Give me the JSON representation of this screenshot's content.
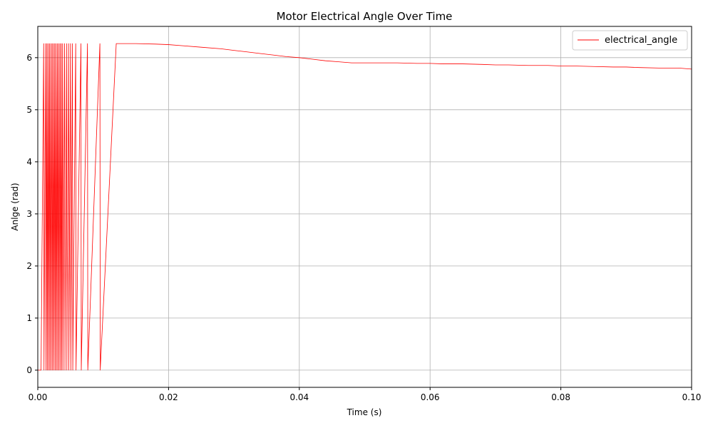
{
  "chart_data": {
    "type": "line",
    "title": "Motor Electrical Angle Over Time",
    "xlabel": "Time (s)",
    "ylabel": "Anlge (rad)",
    "xlim": [
      0,
      0.1
    ],
    "ylim": [
      -0.33,
      6.6
    ],
    "xticks": [
      0.0,
      0.02,
      0.04,
      0.06,
      0.08,
      0.1
    ],
    "xtick_labels": [
      "0.00",
      "0.02",
      "0.04",
      "0.06",
      "0.08",
      "0.10"
    ],
    "yticks": [
      0,
      1,
      2,
      3,
      4,
      5,
      6
    ],
    "ytick_labels": [
      "0",
      "1",
      "2",
      "3",
      "4",
      "5",
      "6"
    ],
    "grid": true,
    "legend_position": "top-right",
    "series": [
      {
        "name": "electrical_angle",
        "color": "#ff0000",
        "x": [
          0.0,
          0.0005,
          0.0009,
          0.00095,
          0.0012,
          0.00125,
          0.0014,
          0.00145,
          0.0016,
          0.00165,
          0.0018,
          0.00185,
          0.002,
          0.00205,
          0.0022,
          0.00225,
          0.0024,
          0.00245,
          0.0026,
          0.00265,
          0.0028,
          0.00285,
          0.003,
          0.00305,
          0.0032,
          0.00325,
          0.0034,
          0.00345,
          0.0036,
          0.00365,
          0.0038,
          0.00385,
          0.0041,
          0.00415,
          0.0044,
          0.00445,
          0.0047,
          0.00475,
          0.005,
          0.00505,
          0.0053,
          0.00535,
          0.0058,
          0.00585,
          0.0066,
          0.00665,
          0.0076,
          0.00765,
          0.0095,
          0.00955,
          0.012,
          0.015,
          0.018,
          0.02,
          0.022,
          0.025,
          0.028,
          0.03,
          0.032,
          0.034,
          0.036,
          0.038,
          0.04,
          0.042,
          0.044,
          0.046,
          0.048,
          0.05,
          0.052,
          0.055,
          0.058,
          0.06,
          0.062,
          0.065,
          0.068,
          0.07,
          0.072,
          0.075,
          0.078,
          0.08,
          0.082,
          0.085,
          0.088,
          0.09,
          0.092,
          0.095,
          0.098,
          0.1
        ],
        "y": [
          0.0,
          0.0,
          6.27,
          0.0,
          6.27,
          0.0,
          6.27,
          0.0,
          6.27,
          0.0,
          6.27,
          0.0,
          6.27,
          0.0,
          6.27,
          0.0,
          6.27,
          0.0,
          6.27,
          0.0,
          6.27,
          0.0,
          6.27,
          0.0,
          6.27,
          0.0,
          6.27,
          0.0,
          6.27,
          0.0,
          6.27,
          0.0,
          6.27,
          0.0,
          6.27,
          0.0,
          6.27,
          0.0,
          6.27,
          0.0,
          6.27,
          0.0,
          6.27,
          0.0,
          6.27,
          0.0,
          6.27,
          0.0,
          6.27,
          0.0,
          6.27,
          6.27,
          6.26,
          6.25,
          6.23,
          6.2,
          6.17,
          6.14,
          6.11,
          6.08,
          6.05,
          6.02,
          6.0,
          5.97,
          5.94,
          5.92,
          5.9,
          5.9,
          5.9,
          5.9,
          5.89,
          5.89,
          5.88,
          5.88,
          5.87,
          5.86,
          5.86,
          5.85,
          5.85,
          5.84,
          5.84,
          5.83,
          5.82,
          5.82,
          5.81,
          5.8,
          5.8,
          5.78
        ]
      }
    ]
  }
}
